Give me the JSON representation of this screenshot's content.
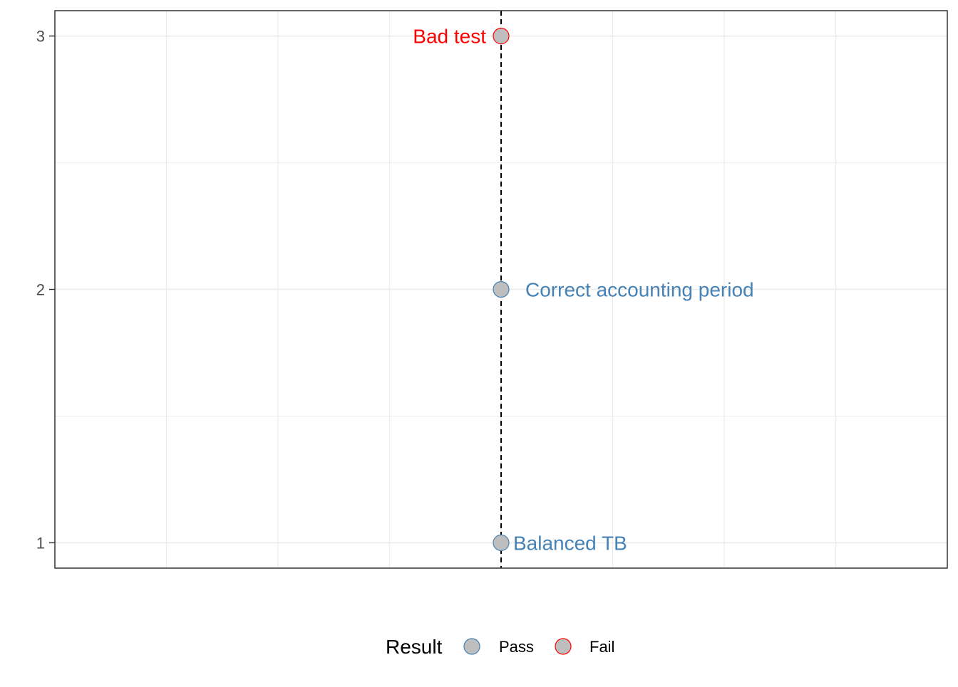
{
  "chart_data": {
    "type": "scatter",
    "title": "",
    "xlabel": "",
    "ylabel": "",
    "x_reference_line": 0,
    "xlim": [
      -4,
      4
    ],
    "ylim": [
      3.1,
      0.9
    ],
    "y_reversed": true,
    "x_ticks_shown": false,
    "y_ticks": [
      1,
      2,
      3
    ],
    "y_tick_labels": [
      "1",
      "2",
      "3"
    ],
    "grid": true,
    "legend": {
      "title": "Result",
      "placement": "bottom",
      "entries": [
        {
          "label": "Pass",
          "fill": "#bebebe",
          "stroke": "#4682b4"
        },
        {
          "label": "Fail",
          "fill": "#bebebe",
          "stroke": "#ff0000"
        }
      ]
    },
    "points": [
      {
        "x": 0,
        "y": 1,
        "label": "Balanced TB",
        "result": "Pass",
        "label_side": "right"
      },
      {
        "x": 0,
        "y": 2,
        "label": "Correct accounting period",
        "result": "Pass",
        "label_side": "right"
      },
      {
        "x": 0,
        "y": 3,
        "label": "Bad test",
        "result": "Fail",
        "label_side": "left"
      }
    ],
    "colors": {
      "pass": "#4682b4",
      "fail": "#ff0000",
      "point_fill": "#bebebe",
      "grid": "#ebebeb",
      "panel_border": "#333333"
    }
  }
}
